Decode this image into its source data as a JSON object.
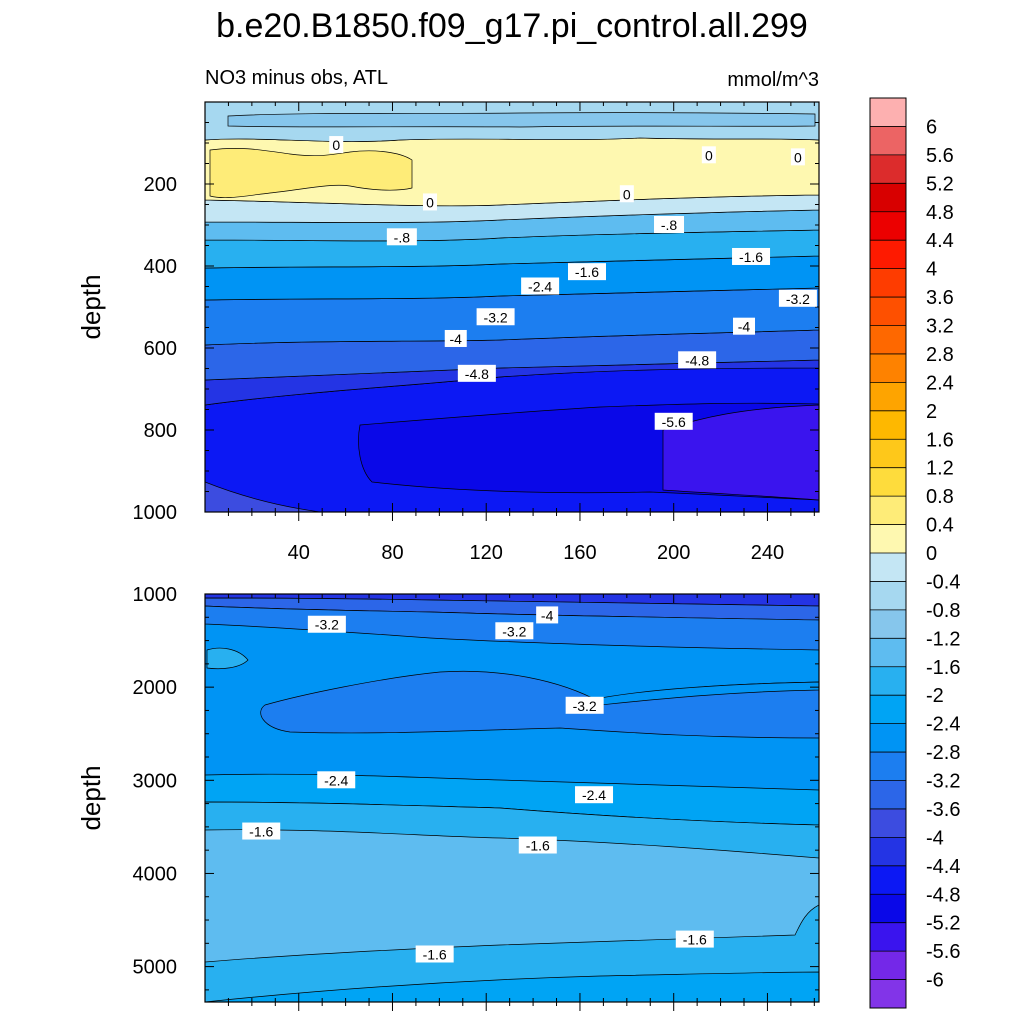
{
  "chart_data": {
    "type": "contour",
    "title": "b.e20.B1850.f09_g17.pi_control.all.299",
    "panels": [
      {
        "id": "upper",
        "subtitle_left": "NO3 minus obs, ATL",
        "subtitle_right": "mmol/m^3",
        "ylabel": "depth",
        "xlim": [
          0,
          262
        ],
        "ylim": [
          1000,
          0
        ],
        "x_ticks": [
          40,
          80,
          120,
          160,
          200,
          240
        ],
        "y_ticks": [
          200,
          400,
          600,
          800,
          1000
        ],
        "contour_labels": [
          {
            "text": "0",
            "x": 56,
            "y": 105
          },
          {
            "text": "0",
            "x": 215,
            "y": 130
          },
          {
            "text": "0",
            "x": 253,
            "y": 135
          },
          {
            "text": "0",
            "x": 96,
            "y": 245
          },
          {
            "text": "0",
            "x": 180,
            "y": 225
          },
          {
            "text": "-.8",
            "x": 84,
            "y": 330
          },
          {
            "text": "-.8",
            "x": 198,
            "y": 300
          },
          {
            "text": "-1.6",
            "x": 163,
            "y": 415
          },
          {
            "text": "-1.6",
            "x": 233,
            "y": 378
          },
          {
            "text": "-2.4",
            "x": 143,
            "y": 450
          },
          {
            "text": "-3.2",
            "x": 124,
            "y": 525
          },
          {
            "text": "-3.2",
            "x": 253,
            "y": 480
          },
          {
            "text": "-4",
            "x": 107,
            "y": 578
          },
          {
            "text": "-4",
            "x": 230,
            "y": 548
          },
          {
            "text": "-4.8",
            "x": 116,
            "y": 663
          },
          {
            "text": "-4.8",
            "x": 210,
            "y": 630
          },
          {
            "text": "-5.6",
            "x": 200,
            "y": 780
          }
        ]
      },
      {
        "id": "lower",
        "ylabel": "depth",
        "xlim": [
          0,
          262
        ],
        "ylim": [
          5380,
          1000
        ],
        "y_ticks": [
          1000,
          2000,
          3000,
          4000,
          5000
        ],
        "contour_labels": [
          {
            "text": "-3.2",
            "x": 52,
            "y": 1330
          },
          {
            "text": "-4",
            "x": 146,
            "y": 1230
          },
          {
            "text": "-3.2",
            "x": 132,
            "y": 1400
          },
          {
            "text": "-3.2",
            "x": 162,
            "y": 2200
          },
          {
            "text": "-2.4",
            "x": 56,
            "y": 3000
          },
          {
            "text": "-2.4",
            "x": 166,
            "y": 3160
          },
          {
            "text": "-1.6",
            "x": 24,
            "y": 3550
          },
          {
            "text": "-1.6",
            "x": 142,
            "y": 3700
          },
          {
            "text": "-1.6",
            "x": 98,
            "y": 4870
          },
          {
            "text": "-1.6",
            "x": 209,
            "y": 4710
          }
        ]
      }
    ],
    "colorbar": {
      "units": "mmol/m^3",
      "levels": [
        "6",
        "5.6",
        "5.2",
        "4.8",
        "4.4",
        "4",
        "3.6",
        "3.2",
        "2.8",
        "2.4",
        "2",
        "1.6",
        "1.2",
        "0.8",
        "0.4",
        "0",
        "-0.4",
        "-0.8",
        "-1.2",
        "-1.6",
        "-2",
        "-2.4",
        "-2.8",
        "-3.2",
        "-3.6",
        "-4",
        "-4.4",
        "-4.8",
        "-5.2",
        "-5.6",
        "-6"
      ],
      "colors": [
        "#fdb0b0",
        "#ec6464",
        "#dc2c2c",
        "#d80000",
        "#ec0000",
        "#fe1a00",
        "#fe3c00",
        "#fe5000",
        "#fe6800",
        "#fe8200",
        "#fea400",
        "#feb800",
        "#fec81a",
        "#fedc3c",
        "#feec78",
        "#fef8b0",
        "#c4e6f4",
        "#a6d8f0",
        "#86c6ec",
        "#5ebcf0",
        "#28b0f0",
        "#00a4f4",
        "#0094f4",
        "#1c7ef0",
        "#2c66e8",
        "#3c4ce0",
        "#2434e4",
        "#0c18f4",
        "#0a08e8",
        "#3a14ee",
        "#7428e8",
        "#8234e8"
      ]
    }
  }
}
